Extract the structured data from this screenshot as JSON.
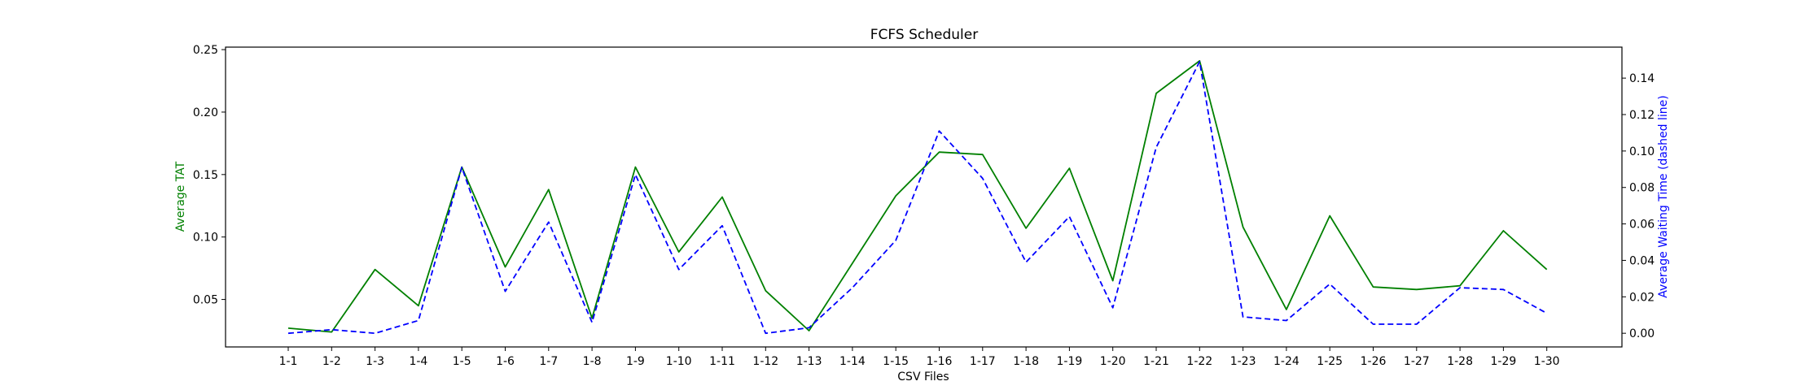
{
  "chart_data": {
    "type": "line",
    "title": "FCFS Scheduler",
    "xlabel": "CSV Files",
    "ylabel_left": "Average TAT",
    "ylabel_right": "Average Waiting Time (dashed line)",
    "categories": [
      "1-1",
      "1-2",
      "1-3",
      "1-4",
      "1-5",
      "1-6",
      "1-7",
      "1-8",
      "1-9",
      "1-10",
      "1-11",
      "1-12",
      "1-13",
      "1-14",
      "1-15",
      "1-16",
      "1-17",
      "1-18",
      "1-19",
      "1-20",
      "1-21",
      "1-22",
      "1-23",
      "1-24",
      "1-25",
      "1-26",
      "1-27",
      "1-28",
      "1-29",
      "1-30"
    ],
    "left_axis": {
      "ylim": [
        0.012,
        0.252
      ],
      "ticks": [
        0.05,
        0.1,
        0.15,
        0.2,
        0.25
      ],
      "tick_labels": [
        "0.05",
        "0.10",
        "0.15",
        "0.20",
        "0.25"
      ]
    },
    "right_axis": {
      "ylim": [
        -0.0075,
        0.157
      ],
      "ticks": [
        0.0,
        0.02,
        0.04,
        0.06,
        0.08,
        0.1,
        0.12,
        0.14
      ],
      "tick_labels": [
        "0.00",
        "0.02",
        "0.04",
        "0.06",
        "0.08",
        "0.10",
        "0.12",
        "0.14"
      ]
    },
    "grid": false,
    "legend": "none",
    "series": [
      {
        "axis": "left",
        "style": "solid",
        "color": "#008000",
        "values": [
          0.027,
          0.024,
          0.074,
          0.045,
          0.156,
          0.076,
          0.138,
          0.035,
          0.156,
          0.088,
          0.132,
          0.057,
          0.025,
          0.079,
          0.133,
          0.168,
          0.166,
          0.107,
          0.155,
          0.065,
          0.215,
          0.241,
          0.108,
          0.042,
          0.117,
          0.06,
          0.058,
          0.061,
          0.105,
          0.074
        ]
      },
      {
        "axis": "right",
        "style": "dashed",
        "color": "#0000ff",
        "values": [
          0.0,
          0.002,
          0.0,
          0.007,
          0.091,
          0.023,
          0.061,
          0.006,
          0.087,
          0.035,
          0.059,
          0.0,
          0.003,
          0.025,
          0.051,
          0.111,
          0.085,
          0.039,
          0.064,
          0.014,
          0.102,
          0.149,
          0.009,
          0.007,
          0.027,
          0.005,
          0.005,
          0.025,
          0.024,
          0.011
        ]
      }
    ]
  }
}
